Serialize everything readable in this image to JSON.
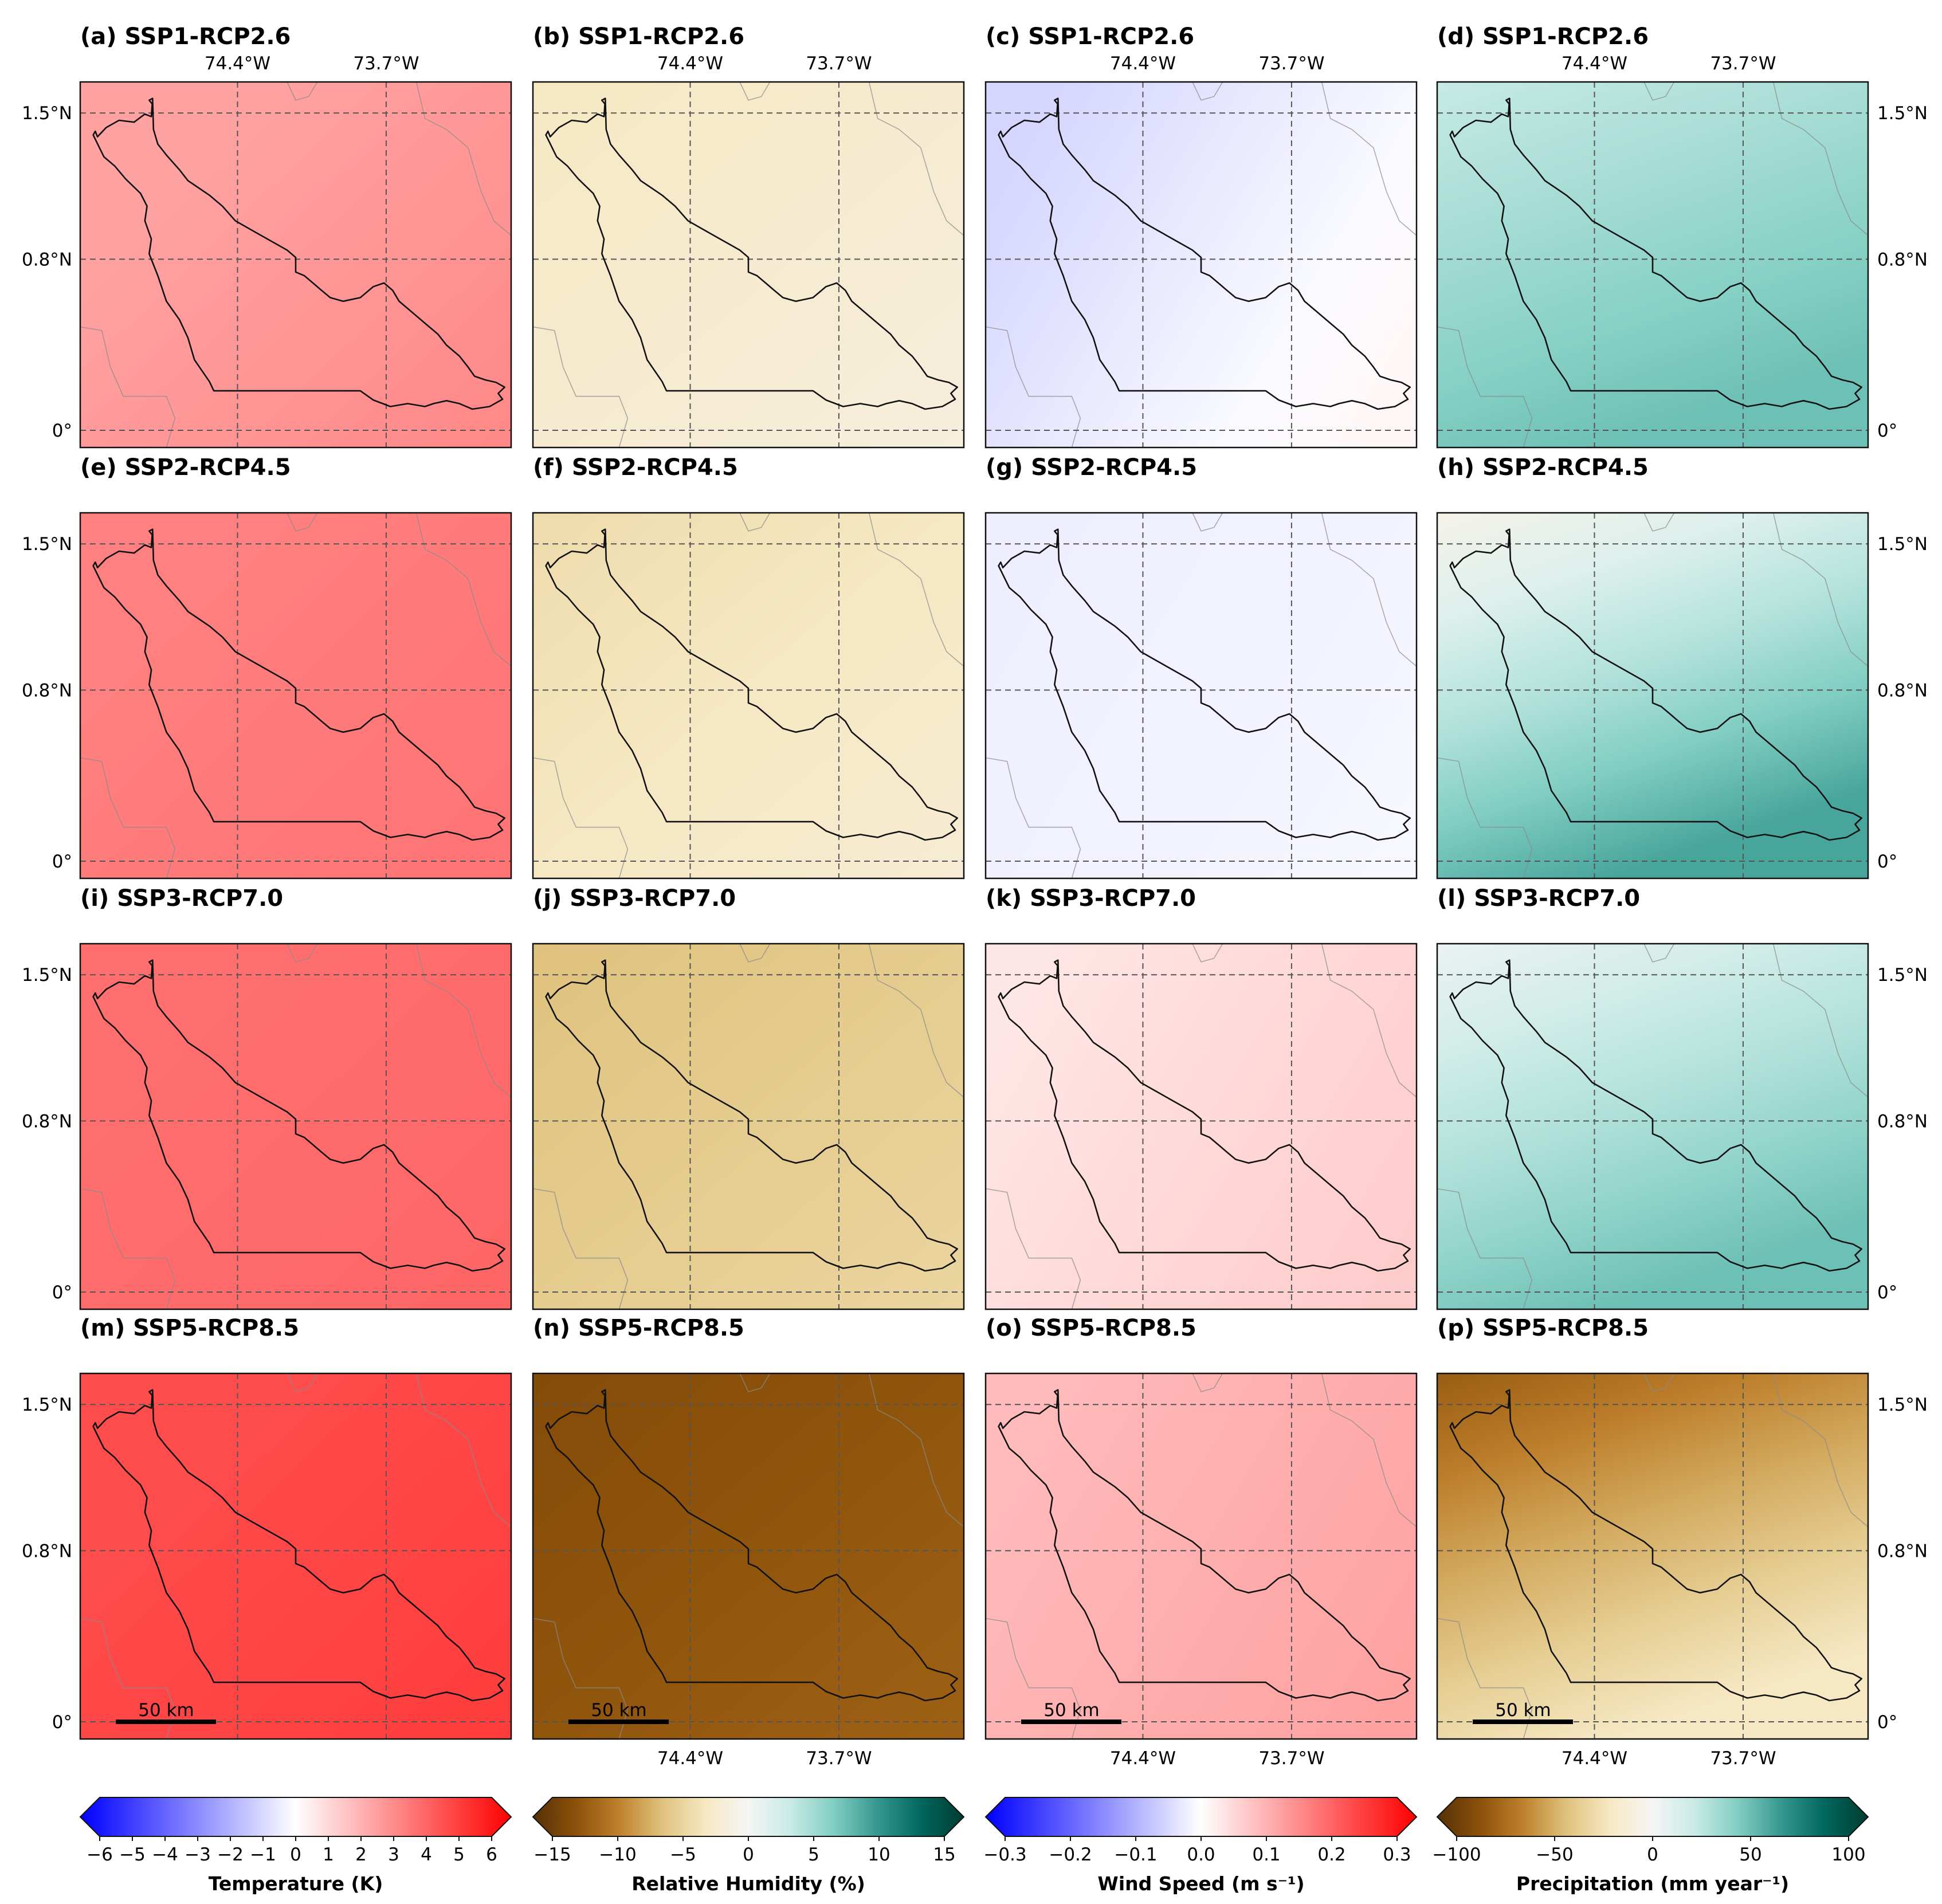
{
  "figure": {
    "scenarios": [
      "SSP1-RCP2.6",
      "SSP2-RCP4.5",
      "SSP3-RCP7.0",
      "SSP5-RCP8.5"
    ],
    "variables": [
      "Temperature",
      "Relative Humidity",
      "Wind Speed",
      "Precipitation"
    ],
    "lon_ticks": [
      "74.4°W",
      "73.7°W"
    ],
    "lat_ticks": [
      "1.5°N",
      "0.8°N",
      "0°"
    ],
    "scale_bar": "50 km"
  },
  "colorbars": [
    {
      "label": "Temperature (K)",
      "ticks": [
        "−6",
        "−5",
        "−4",
        "−3",
        "−2",
        "−1",
        "0",
        "1",
        "2",
        "3",
        "4",
        "5",
        "6"
      ],
      "range": [
        -6,
        6
      ],
      "cmap": "bwr"
    },
    {
      "label": "Relative Humidity (%)",
      "ticks": [
        "−15",
        "−10",
        "−5",
        "0",
        "5",
        "10",
        "15"
      ],
      "range": [
        -15,
        15
      ],
      "cmap": "BrBG"
    },
    {
      "label": "Wind Speed (m s⁻¹)",
      "ticks": [
        "−0.3",
        "−0.2",
        "−0.1",
        "0.0",
        "0.1",
        "0.2",
        "0.3"
      ],
      "range": [
        -0.3,
        0.3
      ],
      "cmap": "bwr"
    },
    {
      "label": "Precipitation (mm year⁻¹)",
      "ticks": [
        "−100",
        "−50",
        "0",
        "50",
        "100"
      ],
      "range": [
        -100,
        100
      ],
      "cmap": "BrBG"
    }
  ],
  "chart_data": {
    "type": "heatmap",
    "description_rows": "scenarios",
    "description_cols": "variables",
    "panels": [
      {
        "id": "a",
        "title": "(a) SSP1-RCP2.6",
        "scenario": "SSP1-RCP2.6",
        "variable": "Temperature",
        "range_est": [
          2.2,
          2.8
        ]
      },
      {
        "id": "b",
        "title": "(b) SSP1-RCP2.6",
        "scenario": "SSP1-RCP2.6",
        "variable": "Relative Humidity",
        "range_est": [
          -3,
          -1.5
        ]
      },
      {
        "id": "c",
        "title": "(c) SSP1-RCP2.6",
        "scenario": "SSP1-RCP2.6",
        "variable": "Wind Speed",
        "range_est": [
          -0.05,
          0.01
        ]
      },
      {
        "id": "d",
        "title": "(d) SSP1-RCP2.6",
        "scenario": "SSP1-RCP2.6",
        "variable": "Precipitation",
        "range_est": [
          20,
          45
        ]
      },
      {
        "id": "e",
        "title": "(e) SSP2-RCP4.5",
        "scenario": "SSP2-RCP4.5",
        "variable": "Temperature",
        "range_est": [
          3,
          3.3
        ]
      },
      {
        "id": "f",
        "title": "(f) SSP2-RCP4.5",
        "scenario": "SSP2-RCP4.5",
        "variable": "Relative Humidity",
        "range_est": [
          -4,
          -2
        ]
      },
      {
        "id": "g",
        "title": "(g) SSP2-RCP4.5",
        "scenario": "SSP2-RCP4.5",
        "variable": "Wind Speed",
        "range_est": [
          -0.02,
          -0.01
        ]
      },
      {
        "id": "h",
        "title": "(h) SSP2-RCP4.5",
        "scenario": "SSP2-RCP4.5",
        "variable": "Precipitation",
        "range_est": [
          -5,
          55
        ]
      },
      {
        "id": "i",
        "title": "(i) SSP3-RCP7.0",
        "scenario": "SSP3-RCP7.0",
        "variable": "Temperature",
        "range_est": [
          3.4,
          3.6
        ]
      },
      {
        "id": "j",
        "title": "(j) SSP3-RCP7.0",
        "scenario": "SSP3-RCP7.0",
        "variable": "Relative Humidity",
        "range_est": [
          -6,
          -4.5
        ]
      },
      {
        "id": "k",
        "title": "(k) SSP3-RCP7.0",
        "scenario": "SSP3-RCP7.0",
        "variable": "Wind Speed",
        "range_est": [
          0.03,
          0.06
        ]
      },
      {
        "id": "l",
        "title": "(l) SSP3-RCP7.0",
        "scenario": "SSP3-RCP7.0",
        "variable": "Precipitation",
        "range_est": [
          5,
          45
        ]
      },
      {
        "id": "m",
        "title": "(m) SSP5-RCP8.5",
        "scenario": "SSP5-RCP8.5",
        "variable": "Temperature",
        "range_est": [
          4.2,
          4.6
        ]
      },
      {
        "id": "n",
        "title": "(n) SSP5-RCP8.5",
        "scenario": "SSP5-RCP8.5",
        "variable": "Relative Humidity",
        "range_est": [
          -12.5,
          -11
        ]
      },
      {
        "id": "o",
        "title": "(o) SSP5-RCP8.5",
        "scenario": "SSP5-RCP8.5",
        "variable": "Wind Speed",
        "range_est": [
          0.08,
          0.11
        ]
      },
      {
        "id": "p",
        "title": "(p) SSP5-RCP8.5",
        "scenario": "SSP5-RCP8.5",
        "variable": "Precipitation",
        "range_est": [
          -75,
          -20
        ]
      }
    ]
  }
}
